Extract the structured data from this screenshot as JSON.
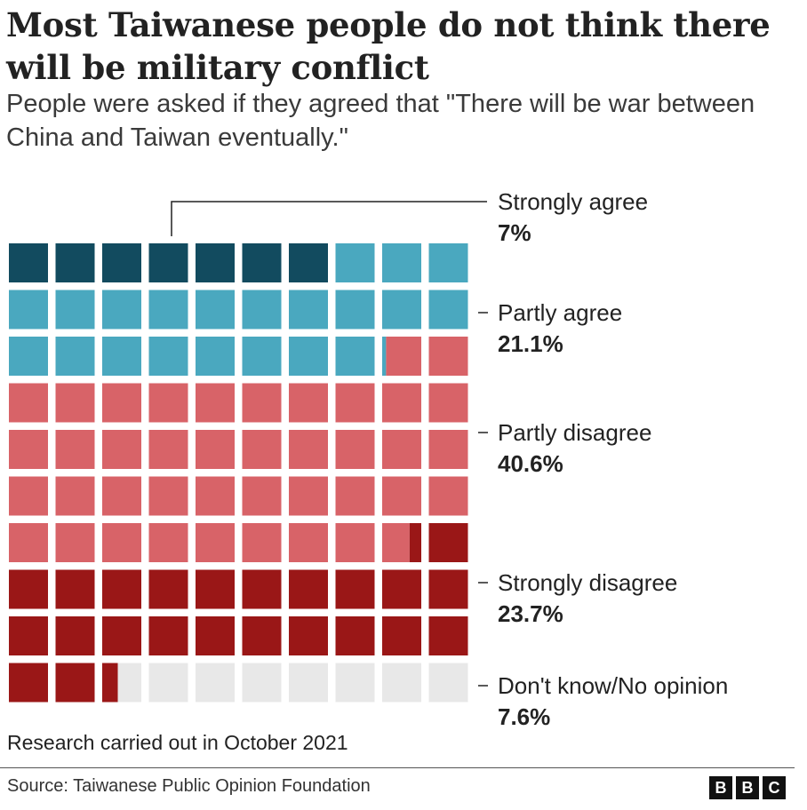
{
  "chart_data": {
    "type": "waffle",
    "title": "Most Taiwanese people do not think there will be military conflict",
    "subtitle": "People were asked if they agreed that \"There will be war between China and Taiwan eventually.\"",
    "total_units": 100,
    "series": [
      {
        "name": "Strongly agree",
        "value": 7,
        "label": "7%",
        "color": "#124b5f"
      },
      {
        "name": "Partly agree",
        "value": 21.1,
        "label": "21.1%",
        "color": "#4aa8bf"
      },
      {
        "name": "Partly disagree",
        "value": 40.6,
        "label": "40.6%",
        "color": "#d86368"
      },
      {
        "name": "Strongly disagree",
        "value": 23.7,
        "label": "23.7%",
        "color": "#9a1717"
      },
      {
        "name": "Don't know/No opinion",
        "value": 7.6,
        "label": "7.6%",
        "color": "#e8e8e8"
      }
    ]
  },
  "note": "Research carried out in October 2021",
  "source": "Source: Taiwanese Public Opinion Foundation",
  "logo": [
    "B",
    "B",
    "C"
  ]
}
